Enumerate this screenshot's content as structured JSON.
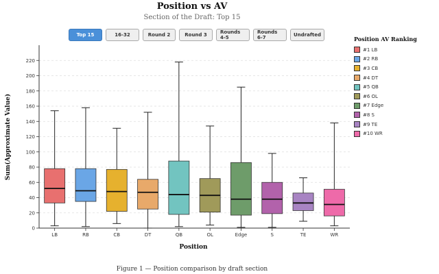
{
  "title": "Position vs AV",
  "subtitle": "Section of the Draft: Top 15",
  "tabs": [
    {
      "label": "Top 15",
      "active": true
    },
    {
      "label": "16-32",
      "active": false
    },
    {
      "label": "Round 2",
      "active": false
    },
    {
      "label": "Round 3",
      "active": false
    },
    {
      "label": "Rounds 4-5",
      "active": false
    },
    {
      "label": "Rounds 6-7",
      "active": false
    },
    {
      "label": "Undrafted",
      "active": false
    }
  ],
  "legend": {
    "title": "Position AV Ranking",
    "items": [
      {
        "label": "#1 LB",
        "color": "#e8706f"
      },
      {
        "label": "#2 RB",
        "color": "#6aa6e6"
      },
      {
        "label": "#3 CB",
        "color": "#e6b12e"
      },
      {
        "label": "#4 DT",
        "color": "#e8a96a"
      },
      {
        "label": "#5 QB",
        "color": "#72c4c0"
      },
      {
        "label": "#6 OL",
        "color": "#a09a5a"
      },
      {
        "label": "#7 Edge",
        "color": "#6e9c6a"
      },
      {
        "label": "#8 S",
        "color": "#b262ab"
      },
      {
        "label": "#9 TE",
        "color": "#a884c3"
      },
      {
        "label": "#10 WR",
        "color": "#ee6aa9"
      }
    ]
  },
  "caption": "Figure 1 — Position comparison by draft section",
  "chart_data": {
    "type": "boxplot",
    "xlabel": "Position",
    "ylabel": "Sum(Approximate Value)",
    "ylim": [
      0,
      240
    ],
    "yticks": [
      0,
      20,
      40,
      60,
      80,
      100,
      120,
      140,
      160,
      180,
      200,
      220
    ],
    "grid": "horizontal dashed",
    "categories": [
      "LB",
      "RB",
      "CB",
      "DT",
      "QB",
      "OL",
      "Edge",
      "S",
      "TE",
      "WR"
    ],
    "boxes": [
      {
        "category": "LB",
        "min": 3,
        "q1": 33,
        "median": 52,
        "q3": 78,
        "max": 154,
        "color": "#e8706f"
      },
      {
        "category": "RB",
        "min": 2,
        "q1": 35,
        "median": 49,
        "q3": 78,
        "max": 158,
        "color": "#6aa6e6"
      },
      {
        "category": "CB",
        "min": 6,
        "q1": 22,
        "median": 48,
        "q3": 77,
        "max": 131,
        "color": "#e6b12e"
      },
      {
        "category": "DT",
        "min": 0,
        "q1": 25,
        "median": 47,
        "q3": 64,
        "max": 152,
        "color": "#e8a96a"
      },
      {
        "category": "QB",
        "min": 2,
        "q1": 18,
        "median": 44,
        "q3": 88,
        "max": 218,
        "color": "#72c4c0"
      },
      {
        "category": "OL",
        "min": 4,
        "q1": 21,
        "median": 43,
        "q3": 65,
        "max": 134,
        "color": "#a09a5a"
      },
      {
        "category": "Edge",
        "min": 1,
        "q1": 17,
        "median": 38,
        "q3": 86,
        "max": 185,
        "color": "#6e9c6a"
      },
      {
        "category": "S",
        "min": 1,
        "q1": 19,
        "median": 38,
        "q3": 60,
        "max": 98,
        "color": "#b262ab"
      },
      {
        "category": "TE",
        "min": 9,
        "q1": 23,
        "median": 33,
        "q3": 46,
        "max": 66,
        "color": "#a884c3"
      },
      {
        "category": "WR",
        "min": 3,
        "q1": 16,
        "median": 31,
        "q3": 51,
        "max": 138,
        "color": "#ee6aa9"
      }
    ]
  }
}
